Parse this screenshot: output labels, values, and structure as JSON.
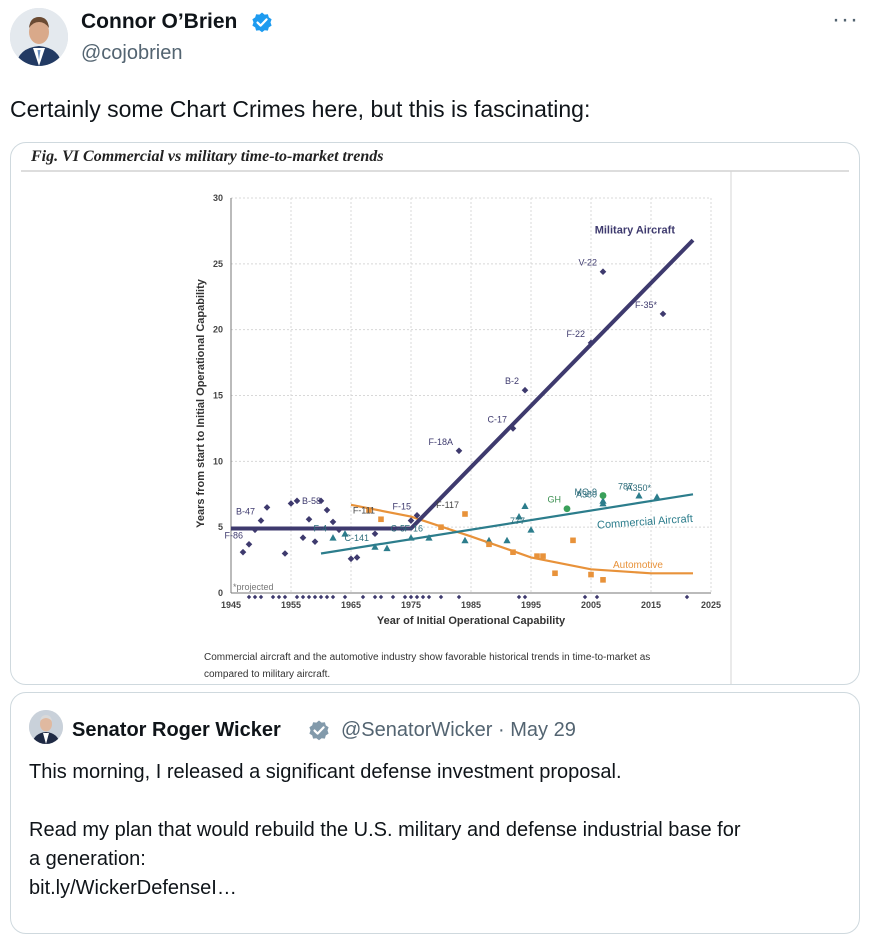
{
  "tweet": {
    "author_name": "Connor O’Brien",
    "author_handle": "@cojobrien",
    "more_icon": "more-icon",
    "text": "Certainly some Chart Crimes here, but this is fascinating:"
  },
  "figure": {
    "title": "Fig. VI Commercial vs military time-to-market trends",
    "caption_line1": "Commercial aircraft and the automotive industry show favorable historical trends in time-to-market as",
    "caption_line2": "compared to military aircraft.",
    "projected_note": "*projected"
  },
  "chart_data": {
    "type": "scatter",
    "xlabel": "Year of Initial Operational Capability",
    "ylabel": "Years from start to Initial Operational Capability",
    "xlim": [
      1945,
      2025
    ],
    "ylim": [
      0,
      30
    ],
    "x_ticks": [
      1945,
      1955,
      1965,
      1975,
      1985,
      1995,
      2005,
      2015,
      2025
    ],
    "y_ticks": [
      0,
      5,
      10,
      15,
      20,
      25,
      30
    ],
    "trend_labels": {
      "military": "Military Aircraft",
      "commercial": "Commercial Aircraft",
      "automotive": "Automotive"
    },
    "colors": {
      "military": "#3e3a6e",
      "commercial": "#2c7d8c",
      "automotive": "#e8923a",
      "ghawk": "#3aa05a"
    },
    "military_points": [
      {
        "x": 1947,
        "y": 3.1
      },
      {
        "x": 1948,
        "y": 3.7,
        "label": "F-86"
      },
      {
        "x": 1949,
        "y": 4.8
      },
      {
        "x": 1950,
        "y": 5.5,
        "label": "B-47"
      },
      {
        "x": 1951,
        "y": 6.5
      },
      {
        "x": 1954,
        "y": 3.0
      },
      {
        "x": 1955,
        "y": 6.8
      },
      {
        "x": 1956,
        "y": 7.0
      },
      {
        "x": 1957,
        "y": 4.2
      },
      {
        "x": 1958,
        "y": 5.6
      },
      {
        "x": 1959,
        "y": 3.9
      },
      {
        "x": 1960,
        "y": 7.0
      },
      {
        "x": 1961,
        "y": 6.3,
        "label": "B-58"
      },
      {
        "x": 1962,
        "y": 5.4
      },
      {
        "x": 1963,
        "y": 4.8
      },
      {
        "x": 1965,
        "y": 2.6
      },
      {
        "x": 1966,
        "y": 2.7
      },
      {
        "x": 1969,
        "y": 4.5
      },
      {
        "x": 1975,
        "y": 5.5
      },
      {
        "x": 1976,
        "y": 5.9,
        "label": "F-15"
      },
      {
        "x": 1983,
        "y": 10.8,
        "label": "F-18A"
      },
      {
        "x": 1992,
        "y": 12.5,
        "label": "C-17"
      },
      {
        "x": 1994,
        "y": 15.4,
        "label": "B-2"
      },
      {
        "x": 2005,
        "y": 19.0,
        "label": "F-22"
      },
      {
        "x": 2007,
        "y": 24.4,
        "label": "V-22"
      },
      {
        "x": 2017,
        "y": 21.2,
        "label": "F-35*"
      }
    ],
    "commercial_points": [
      {
        "x": 1962,
        "y": 4.2,
        "label": "F-4"
      },
      {
        "x": 1964,
        "y": 4.5
      },
      {
        "x": 1969,
        "y": 3.5,
        "label": "C-141"
      },
      {
        "x": 1971,
        "y": 3.4
      },
      {
        "x": 1975,
        "y": 4.2,
        "label": "C-5"
      },
      {
        "x": 1978,
        "y": 4.2,
        "label": "F-16"
      },
      {
        "x": 1984,
        "y": 4.0
      },
      {
        "x": 1988,
        "y": 4.0
      },
      {
        "x": 1991,
        "y": 4.0
      },
      {
        "x": 1993,
        "y": 5.8
      },
      {
        "x": 1994,
        "y": 6.6
      },
      {
        "x": 1995,
        "y": 4.8,
        "label": "777"
      },
      {
        "x": 2007,
        "y": 7.0,
        "label": "MQ-9"
      },
      {
        "x": 2007,
        "y": 6.8,
        "label": "A380"
      },
      {
        "x": 2013,
        "y": 7.4,
        "label": "787"
      },
      {
        "x": 2016,
        "y": 7.3,
        "label": "A350*"
      }
    ],
    "ghawk_points": [
      {
        "x": 2001,
        "y": 6.4,
        "label": "GH"
      },
      {
        "x": 2007,
        "y": 7.4
      }
    ],
    "automotive_points": [
      {
        "x": 1968,
        "y": 6.3
      },
      {
        "x": 1970,
        "y": 5.6,
        "label": "F-111"
      },
      {
        "x": 1980,
        "y": 5.0
      },
      {
        "x": 1984,
        "y": 6.0,
        "label": "F-117"
      },
      {
        "x": 1988,
        "y": 3.7
      },
      {
        "x": 1992,
        "y": 3.1
      },
      {
        "x": 1996,
        "y": 2.8
      },
      {
        "x": 1997,
        "y": 2.8
      },
      {
        "x": 1999,
        "y": 1.5
      },
      {
        "x": 2002,
        "y": 4.0
      },
      {
        "x": 2005,
        "y": 1.4
      },
      {
        "x": 2007,
        "y": 1.0
      }
    ],
    "military_trend": [
      [
        1945,
        4.9
      ],
      [
        1975,
        4.9
      ],
      [
        2022,
        26.8
      ]
    ],
    "commercial_trend": [
      [
        1960,
        3.0
      ],
      [
        2022,
        7.5
      ]
    ],
    "automotive_trend": [
      [
        1965,
        6.7
      ],
      [
        1975,
        5.8
      ],
      [
        1985,
        4.3
      ],
      [
        1995,
        2.7
      ],
      [
        2005,
        1.8
      ],
      [
        2015,
        1.5
      ],
      [
        2022,
        1.5
      ]
    ],
    "xaxis_marker_years": [
      1948,
      1949,
      1950,
      1952,
      1953,
      1954,
      1956,
      1957,
      1958,
      1959,
      1960,
      1961,
      1962,
      1964,
      1967,
      1969,
      1970,
      1972,
      1974,
      1975,
      1976,
      1977,
      1978,
      1980,
      1983,
      1993,
      1994,
      2004,
      2006,
      2021
    ]
  },
  "quote": {
    "author_name": "Senator Roger Wicker",
    "meta": "@SenatorWicker · May 29",
    "line1": "This morning, I released a significant defense investment proposal.",
    "line2": "Read my plan that would rebuild the U.S. military and defense industrial base for",
    "line3": "a generation:",
    "line4": "bit.ly/WickerDefenseI…"
  }
}
